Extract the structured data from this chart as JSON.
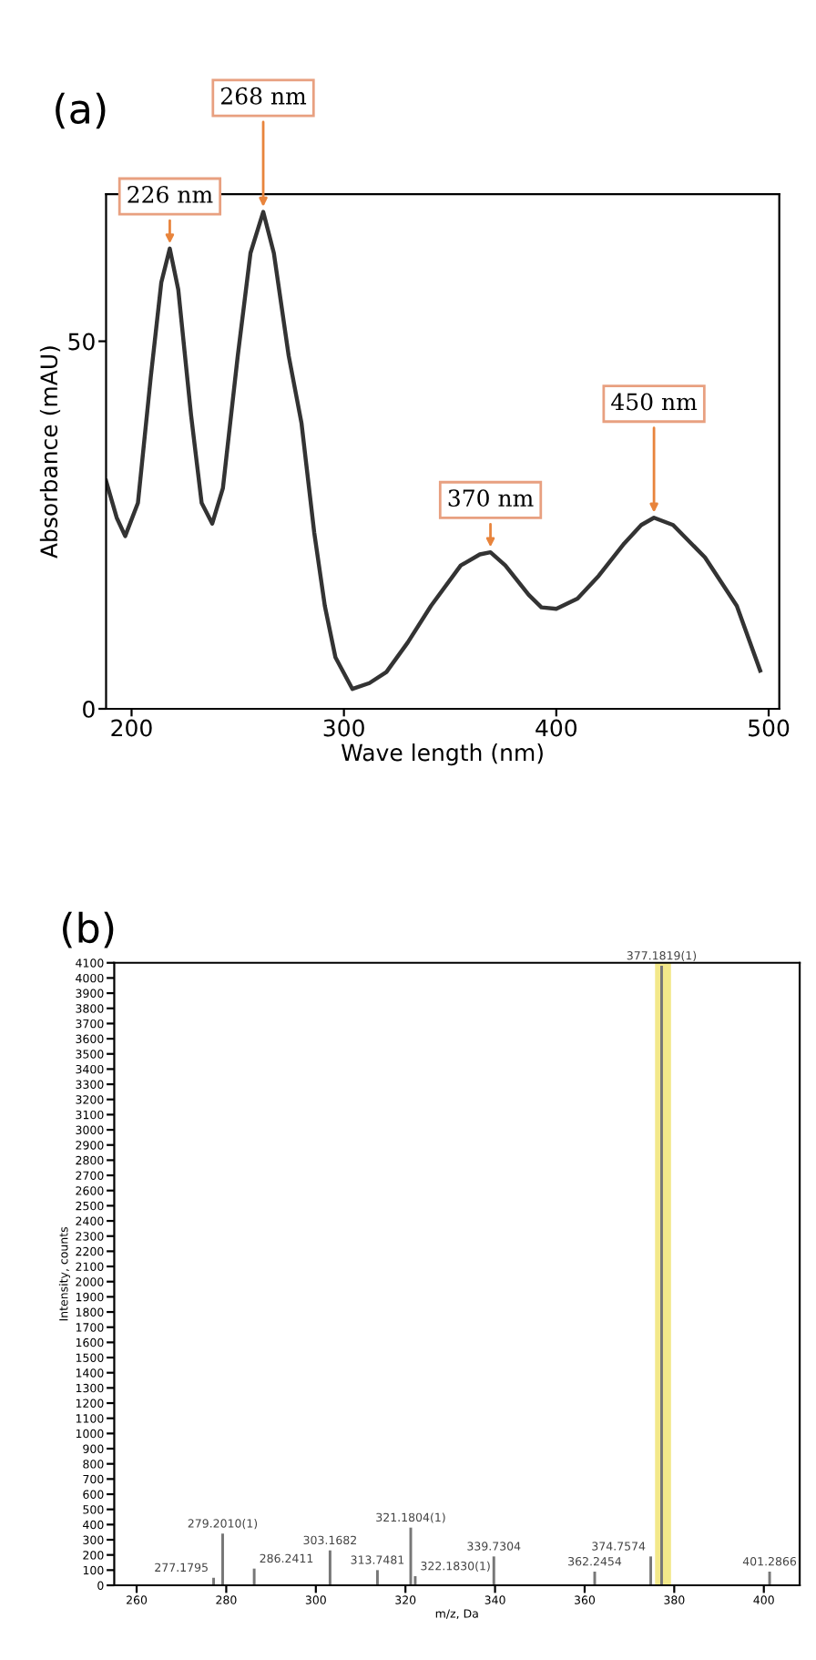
{
  "chart_data": [
    {
      "type": "line",
      "title": "(a)",
      "xlabel": "Wave length (nm)",
      "ylabel": "Absorbance (mAU)",
      "x": [
        188,
        193,
        197,
        203,
        209,
        214,
        218,
        222,
        228,
        233,
        238,
        243,
        250,
        256,
        262,
        267,
        274,
        280,
        286,
        291,
        296,
        304,
        312,
        320,
        330,
        341,
        355,
        364,
        369,
        376,
        387,
        393,
        400,
        410,
        420,
        432,
        440,
        446,
        455,
        470,
        485,
        496
      ],
      "series": [
        {
          "color": "#333333",
          "values": [
            31,
            26,
            23.5,
            28,
            45,
            58,
            62.6,
            57,
            40,
            28,
            25.2,
            30,
            48,
            62,
            67.6,
            62,
            48,
            38.9,
            24,
            14,
            7,
            2.7,
            3.5,
            5,
            9,
            14,
            19.5,
            21,
            21.3,
            19.5,
            15.5,
            13.8,
            13.6,
            15,
            18.1,
            22.5,
            25,
            26,
            25,
            20.6,
            14,
            5.2
          ]
        }
      ],
      "annotations": [
        {
          "text": "226 nm",
          "x": 218,
          "y": 62.6
        },
        {
          "text": "268 nm",
          "x": 262,
          "y": 67.6
        },
        {
          "text": "370 nm",
          "x": 369,
          "y": 21.3
        },
        {
          "text": "450 nm",
          "x": 446,
          "y": 26
        }
      ],
      "xlim": [
        188,
        505
      ],
      "ylim": [
        0,
        70
      ],
      "xticks": [
        200,
        300,
        400,
        500
      ],
      "yticks": [
        0,
        50
      ],
      "grid": false,
      "legend": false
    },
    {
      "type": "bar",
      "title": "(b)",
      "xlabel": "m/z, Da",
      "ylabel": "Intensity, counts",
      "x": [
        277.1795,
        279.201,
        286.2411,
        303.1682,
        313.7481,
        321.1804,
        322.183,
        339.7304,
        362.2454,
        374.7574,
        377.1819,
        401.2866
      ],
      "series": [
        {
          "color": "#777777",
          "values": [
            50,
            340,
            110,
            230,
            100,
            380,
            60,
            190,
            90,
            190,
            4080,
            90
          ]
        }
      ],
      "annotations": [
        {
          "text": "277.1795",
          "x": 277.1795,
          "y": 50
        },
        {
          "text": "279.2010(1)",
          "x": 279.201,
          "y": 340
        },
        {
          "text": "286.2411",
          "x": 286.2411,
          "y": 110
        },
        {
          "text": "303.1682",
          "x": 303.1682,
          "y": 230
        },
        {
          "text": "313.7481",
          "x": 313.7481,
          "y": 100
        },
        {
          "text": "321.1804(1)",
          "x": 321.1804,
          "y": 380
        },
        {
          "text": "322.1830(1)",
          "x": 322.183,
          "y": 60
        },
        {
          "text": "339.7304",
          "x": 339.7304,
          "y": 190
        },
        {
          "text": "362.2454",
          "x": 362.2454,
          "y": 90
        },
        {
          "text": "374.7574",
          "x": 374.7574,
          "y": 190
        },
        {
          "text": "377.1819(1)",
          "x": 377.1819,
          "y": 4080
        },
        {
          "text": "401.2866",
          "x": 401.2866,
          "y": 90
        }
      ],
      "bands": [
        {
          "axis": "x",
          "from": 376,
          "to": 379,
          "color": "#f3e88a"
        }
      ],
      "xlim": [
        255,
        408
      ],
      "ylim": [
        0,
        4100
      ],
      "xticks": [
        260,
        280,
        300,
        320,
        340,
        360,
        380,
        400
      ],
      "yticks": [
        0,
        100,
        200,
        300,
        400,
        500,
        600,
        700,
        800,
        900,
        1000,
        1100,
        1200,
        1300,
        1400,
        1500,
        1600,
        1700,
        1800,
        1900,
        2000,
        2100,
        2200,
        2300,
        2400,
        2500,
        2600,
        2700,
        2800,
        2900,
        3000,
        3100,
        3200,
        3300,
        3400,
        3500,
        3600,
        3700,
        3800,
        3900,
        4000,
        4100
      ],
      "grid": false,
      "legend": false
    }
  ]
}
